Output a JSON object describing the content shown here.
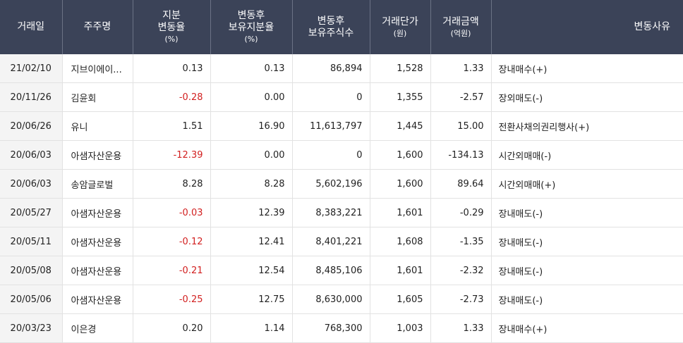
{
  "headers": {
    "date": "거래일",
    "holder": "주주명",
    "share_change": "지분",
    "share_change2": "변동율",
    "share_change_unit": "(%)",
    "after_ratio": "변동후",
    "after_ratio2": "보유지분율",
    "after_ratio_unit": "(%)",
    "after_shares": "변동후",
    "after_shares2": "보유주식수",
    "price": "거래단가",
    "price_unit": "(원)",
    "amount": "거래금액",
    "amount_unit": "(억원)",
    "reason": "변동사유"
  },
  "rows": [
    {
      "date": "21/02/10",
      "holder": "지브이에이...",
      "change": "0.13",
      "ratio": "0.13",
      "shares": "86,894",
      "price": "1,528",
      "amount": "1.33",
      "reason": "장내매수(+)",
      "negative": false
    },
    {
      "date": "20/11/26",
      "holder": "김윤회",
      "change": "-0.28",
      "ratio": "0.00",
      "shares": "0",
      "price": "1,355",
      "amount": "-2.57",
      "reason": "장외매도(-)",
      "negative": true
    },
    {
      "date": "20/06/26",
      "holder": "유니",
      "change": "1.51",
      "ratio": "16.90",
      "shares": "11,613,797",
      "price": "1,445",
      "amount": "15.00",
      "reason": "전환사채의권리행사(+)",
      "negative": false
    },
    {
      "date": "20/06/03",
      "holder": "아샘자산운용",
      "change": "-12.39",
      "ratio": "0.00",
      "shares": "0",
      "price": "1,600",
      "amount": "-134.13",
      "reason": "시간외매매(-)",
      "negative": true
    },
    {
      "date": "20/06/03",
      "holder": "송암글로벌",
      "change": "8.28",
      "ratio": "8.28",
      "shares": "5,602,196",
      "price": "1,600",
      "amount": "89.64",
      "reason": "시간외매매(+)",
      "negative": false
    },
    {
      "date": "20/05/27",
      "holder": "아샘자산운용",
      "change": "-0.03",
      "ratio": "12.39",
      "shares": "8,383,221",
      "price": "1,601",
      "amount": "-0.29",
      "reason": "장내매도(-)",
      "negative": true
    },
    {
      "date": "20/05/11",
      "holder": "아샘자산운용",
      "change": "-0.12",
      "ratio": "12.41",
      "shares": "8,401,221",
      "price": "1,608",
      "amount": "-1.35",
      "reason": "장내매도(-)",
      "negative": true
    },
    {
      "date": "20/05/08",
      "holder": "아샘자산운용",
      "change": "-0.21",
      "ratio": "12.54",
      "shares": "8,485,106",
      "price": "1,601",
      "amount": "-2.32",
      "reason": "장내매도(-)",
      "negative": true
    },
    {
      "date": "20/05/06",
      "holder": "아샘자산운용",
      "change": "-0.25",
      "ratio": "12.75",
      "shares": "8,630,000",
      "price": "1,605",
      "amount": "-2.73",
      "reason": "장내매도(-)",
      "negative": true
    },
    {
      "date": "20/03/23",
      "holder": "이은경",
      "change": "0.20",
      "ratio": "1.14",
      "shares": "768,300",
      "price": "1,003",
      "amount": "1.33",
      "reason": "장내매수(+)",
      "negative": false
    }
  ],
  "colors": {
    "header_bg": "#3b4358",
    "negative": "#d22020",
    "date_bg": "#f4f4f4"
  }
}
